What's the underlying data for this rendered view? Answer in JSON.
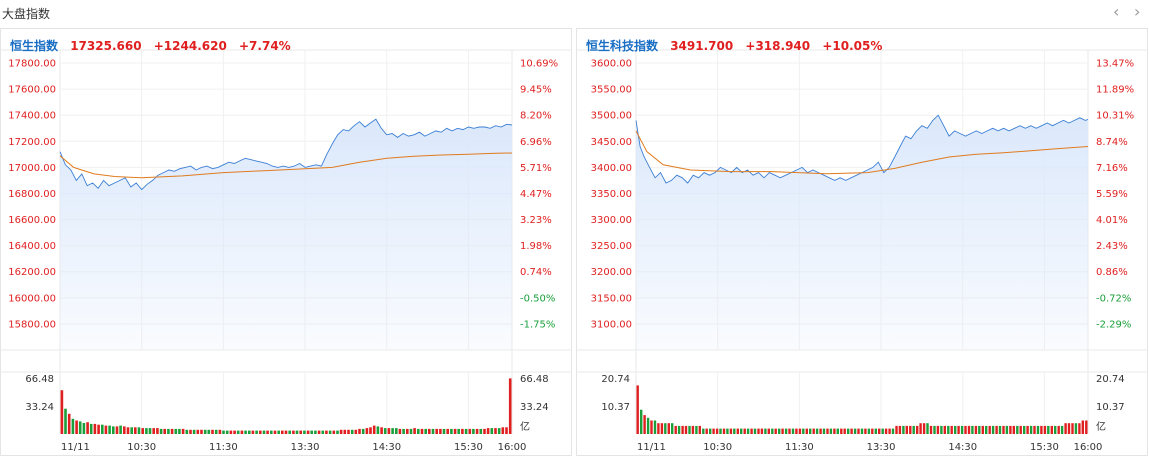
{
  "page": {
    "title": "大盘指数",
    "prev_icon": "chevron-left-icon",
    "next_icon": "chevron-right-icon"
  },
  "colors": {
    "price_line": "#3b7fd4",
    "area_fill": "#dbe8fb",
    "avg_line": "#e07b1e",
    "up": "#e02020",
    "down": "#1a9f3a",
    "name": "#1a6fc4"
  },
  "chart_data": [
    {
      "type": "line",
      "name": "恒生指数",
      "last": "17325.660",
      "change": "+1244.620",
      "change_pct": "+7.74%",
      "ylim": [
        15600,
        17900
      ],
      "y_ticks": [
        "17800.00",
        "17600.00",
        "17400.00",
        "17200.00",
        "17000.00",
        "16800.00",
        "16600.00",
        "16400.00",
        "16200.00",
        "16000.00",
        "15800.00"
      ],
      "pct_ticks": [
        "10.69%",
        "9.45%",
        "8.20%",
        "6.96%",
        "5.71%",
        "4.47%",
        "3.23%",
        "1.98%",
        "0.74%",
        "-0.50%",
        "-1.75%"
      ],
      "x_ticks": [
        "11/11",
        "10:30",
        "11:30",
        "13:30",
        "14:30",
        "15:30",
        "16:00"
      ],
      "price": [
        [
          0,
          17120
        ],
        [
          4,
          17020
        ],
        [
          8,
          16980
        ],
        [
          12,
          16900
        ],
        [
          16,
          16950
        ],
        [
          20,
          16860
        ],
        [
          24,
          16880
        ],
        [
          28,
          16840
        ],
        [
          32,
          16900
        ],
        [
          36,
          16860
        ],
        [
          40,
          16880
        ],
        [
          44,
          16900
        ],
        [
          48,
          16920
        ],
        [
          52,
          16850
        ],
        [
          56,
          16880
        ],
        [
          60,
          16830
        ],
        [
          64,
          16870
        ],
        [
          68,
          16900
        ],
        [
          72,
          16940
        ],
        [
          76,
          16960
        ],
        [
          80,
          16980
        ],
        [
          84,
          16970
        ],
        [
          88,
          16990
        ],
        [
          92,
          17000
        ],
        [
          96,
          17010
        ],
        [
          100,
          16980
        ],
        [
          104,
          17000
        ],
        [
          108,
          17010
        ],
        [
          112,
          16990
        ],
        [
          116,
          17000
        ],
        [
          120,
          17020
        ],
        [
          124,
          17040
        ],
        [
          128,
          17030
        ],
        [
          132,
          17050
        ],
        [
          136,
          17070
        ],
        [
          140,
          17060
        ],
        [
          144,
          17050
        ],
        [
          148,
          17040
        ],
        [
          152,
          17030
        ],
        [
          156,
          17010
        ],
        [
          160,
          17000
        ],
        [
          164,
          17010
        ],
        [
          168,
          17000
        ],
        [
          172,
          17010
        ],
        [
          176,
          17030
        ],
        [
          180,
          17000
        ],
        [
          184,
          17010
        ],
        [
          188,
          17020
        ],
        [
          192,
          17010
        ],
        [
          196,
          17100
        ],
        [
          200,
          17180
        ],
        [
          204,
          17250
        ],
        [
          208,
          17290
        ],
        [
          212,
          17280
        ],
        [
          216,
          17320
        ],
        [
          220,
          17350
        ],
        [
          224,
          17310
        ],
        [
          228,
          17340
        ],
        [
          232,
          17370
        ],
        [
          236,
          17300
        ],
        [
          240,
          17250
        ],
        [
          244,
          17260
        ],
        [
          248,
          17230
        ],
        [
          252,
          17260
        ],
        [
          256,
          17240
        ],
        [
          260,
          17250
        ],
        [
          264,
          17270
        ],
        [
          268,
          17240
        ],
        [
          272,
          17260
        ],
        [
          276,
          17280
        ],
        [
          280,
          17270
        ],
        [
          284,
          17300
        ],
        [
          288,
          17280
        ],
        [
          292,
          17300
        ],
        [
          296,
          17290
        ],
        [
          300,
          17310
        ],
        [
          304,
          17300
        ],
        [
          308,
          17310
        ],
        [
          312,
          17310
        ],
        [
          316,
          17300
        ],
        [
          320,
          17320
        ],
        [
          324,
          17310
        ],
        [
          328,
          17330
        ],
        [
          332,
          17325
        ]
      ],
      "avg": [
        [
          0,
          17090
        ],
        [
          10,
          17000
        ],
        [
          25,
          16950
        ],
        [
          40,
          16930
        ],
        [
          60,
          16920
        ],
        [
          90,
          16935
        ],
        [
          120,
          16960
        ],
        [
          150,
          16975
        ],
        [
          180,
          16990
        ],
        [
          200,
          17000
        ],
        [
          220,
          17040
        ],
        [
          240,
          17070
        ],
        [
          260,
          17085
        ],
        [
          280,
          17095
        ],
        [
          300,
          17100
        ],
        [
          320,
          17108
        ],
        [
          332,
          17110
        ]
      ],
      "volume_axis": [
        "66.48",
        "33.24",
        "亿"
      ],
      "volume_max": 66.48,
      "volume": [
        52,
        30,
        24,
        18,
        16,
        15,
        13,
        14,
        12,
        12,
        11,
        11,
        10,
        10,
        9,
        9,
        10,
        9,
        8,
        8,
        8,
        8,
        7,
        7,
        7,
        7,
        7,
        6,
        6,
        6,
        6,
        6,
        6,
        6,
        5,
        5,
        5,
        5,
        5,
        5,
        5,
        5,
        5,
        5,
        4,
        4,
        4,
        4,
        4,
        4,
        4,
        4,
        4,
        4,
        4,
        4,
        4,
        4,
        4,
        4,
        4,
        4,
        4,
        4,
        4,
        4,
        4,
        4,
        4,
        4,
        4,
        4,
        4,
        4,
        4,
        4,
        5,
        5,
        5,
        5,
        5,
        6,
        6,
        7,
        8,
        10,
        9,
        8,
        7,
        7,
        7,
        7,
        6,
        6,
        6,
        6,
        7,
        6,
        6,
        6,
        6,
        6,
        6,
        6,
        6,
        6,
        6,
        6,
        6,
        6,
        6,
        6,
        6,
        6,
        6,
        6,
        7,
        7,
        7,
        7,
        8,
        8,
        66
      ],
      "volume_up": [
        1,
        0,
        1,
        0,
        1,
        0,
        0,
        1,
        0,
        1,
        1,
        0,
        1,
        0,
        0,
        1,
        0,
        1,
        1,
        0,
        1,
        0,
        1,
        0,
        0,
        1,
        1,
        0,
        1,
        0,
        1,
        0,
        0,
        1,
        0,
        1,
        0,
        1,
        1,
        0,
        0,
        1,
        0,
        1,
        0,
        0,
        1,
        1,
        0,
        1,
        0,
        0,
        1,
        0,
        1,
        0,
        1,
        0,
        1,
        0,
        1,
        1,
        0,
        1,
        0,
        1,
        0,
        1,
        0,
        0,
        1,
        0,
        1,
        0,
        1,
        0,
        1,
        1,
        1,
        0,
        1,
        1,
        0,
        1,
        1,
        1,
        0,
        1,
        0,
        1,
        0,
        0,
        1,
        0,
        1,
        0,
        1,
        0,
        1,
        0,
        1,
        0,
        1,
        1,
        0,
        1,
        0,
        1,
        0,
        1,
        0,
        1,
        0,
        1,
        0,
        1,
        1,
        0,
        1,
        0,
        1,
        1,
        1
      ]
    },
    {
      "type": "line",
      "name": "恒生科技指数",
      "last": "3491.700",
      "change": "+318.940",
      "change_pct": "+10.05%",
      "ylim": [
        3050,
        3625
      ],
      "y_ticks": [
        "3600.00",
        "3550.00",
        "3500.00",
        "3450.00",
        "3400.00",
        "3350.00",
        "3300.00",
        "3250.00",
        "3200.00",
        "3150.00",
        "3100.00"
      ],
      "pct_ticks": [
        "13.47%",
        "11.89%",
        "10.31%",
        "8.74%",
        "7.16%",
        "5.59%",
        "4.01%",
        "2.43%",
        "0.86%",
        "-0.72%",
        "-2.29%"
      ],
      "x_ticks": [
        "11/11",
        "10:30",
        "11:30",
        "13:30",
        "14:30",
        "15:30",
        "16:00"
      ],
      "price": [
        [
          0,
          3490
        ],
        [
          3,
          3440
        ],
        [
          6,
          3420
        ],
        [
          10,
          3400
        ],
        [
          14,
          3380
        ],
        [
          18,
          3390
        ],
        [
          22,
          3370
        ],
        [
          26,
          3375
        ],
        [
          30,
          3385
        ],
        [
          34,
          3380
        ],
        [
          38,
          3370
        ],
        [
          42,
          3385
        ],
        [
          46,
          3380
        ],
        [
          50,
          3390
        ],
        [
          54,
          3385
        ],
        [
          58,
          3390
        ],
        [
          62,
          3400
        ],
        [
          66,
          3395
        ],
        [
          70,
          3390
        ],
        [
          74,
          3400
        ],
        [
          78,
          3390
        ],
        [
          82,
          3395
        ],
        [
          86,
          3385
        ],
        [
          90,
          3390
        ],
        [
          94,
          3380
        ],
        [
          98,
          3390
        ],
        [
          102,
          3385
        ],
        [
          106,
          3380
        ],
        [
          110,
          3385
        ],
        [
          114,
          3390
        ],
        [
          118,
          3395
        ],
        [
          122,
          3400
        ],
        [
          126,
          3390
        ],
        [
          130,
          3395
        ],
        [
          134,
          3390
        ],
        [
          138,
          3385
        ],
        [
          142,
          3380
        ],
        [
          146,
          3375
        ],
        [
          150,
          3380
        ],
        [
          154,
          3375
        ],
        [
          158,
          3380
        ],
        [
          162,
          3385
        ],
        [
          166,
          3390
        ],
        [
          170,
          3395
        ],
        [
          174,
          3400
        ],
        [
          178,
          3410
        ],
        [
          182,
          3390
        ],
        [
          186,
          3400
        ],
        [
          190,
          3420
        ],
        [
          194,
          3440
        ],
        [
          198,
          3460
        ],
        [
          202,
          3455
        ],
        [
          206,
          3470
        ],
        [
          210,
          3480
        ],
        [
          214,
          3475
        ],
        [
          218,
          3490
        ],
        [
          222,
          3500
        ],
        [
          226,
          3480
        ],
        [
          230,
          3460
        ],
        [
          234,
          3470
        ],
        [
          238,
          3465
        ],
        [
          242,
          3460
        ],
        [
          246,
          3465
        ],
        [
          250,
          3470
        ],
        [
          254,
          3465
        ],
        [
          258,
          3470
        ],
        [
          262,
          3475
        ],
        [
          266,
          3470
        ],
        [
          270,
          3475
        ],
        [
          274,
          3470
        ],
        [
          278,
          3475
        ],
        [
          282,
          3480
        ],
        [
          286,
          3475
        ],
        [
          290,
          3480
        ],
        [
          294,
          3475
        ],
        [
          298,
          3480
        ],
        [
          302,
          3485
        ],
        [
          306,
          3480
        ],
        [
          310,
          3485
        ],
        [
          314,
          3490
        ],
        [
          318,
          3485
        ],
        [
          322,
          3490
        ],
        [
          326,
          3495
        ],
        [
          330,
          3490
        ],
        [
          332,
          3492
        ]
      ],
      "avg": [
        [
          0,
          3470
        ],
        [
          8,
          3430
        ],
        [
          20,
          3405
        ],
        [
          40,
          3395
        ],
        [
          70,
          3392
        ],
        [
          100,
          3392
        ],
        [
          140,
          3388
        ],
        [
          170,
          3390
        ],
        [
          190,
          3398
        ],
        [
          210,
          3410
        ],
        [
          230,
          3420
        ],
        [
          250,
          3425
        ],
        [
          270,
          3428
        ],
        [
          290,
          3432
        ],
        [
          310,
          3436
        ],
        [
          332,
          3440
        ]
      ],
      "volume_axis": [
        "20.74",
        "10.37",
        "亿"
      ],
      "volume_max": 20.74,
      "volume": [
        18,
        9,
        7,
        6,
        5,
        5,
        4,
        4,
        4,
        4,
        4,
        3,
        3,
        3,
        3,
        3,
        3,
        3,
        3,
        2,
        2,
        2,
        2,
        2,
        2,
        2,
        2,
        2,
        2,
        2,
        2,
        2,
        2,
        2,
        2,
        2,
        2,
        2,
        2,
        2,
        2,
        2,
        2,
        2,
        2,
        2,
        2,
        2,
        2,
        2,
        2,
        2,
        2,
        2,
        2,
        2,
        2,
        2,
        2,
        2,
        2,
        2,
        2,
        2,
        2,
        2,
        2,
        2,
        2,
        2,
        2,
        2,
        2,
        2,
        2,
        3,
        3,
        3,
        3,
        3,
        3,
        3,
        4,
        4,
        4,
        3,
        3,
        3,
        3,
        3,
        3,
        3,
        3,
        3,
        3,
        3,
        3,
        3,
        3,
        3,
        3,
        3,
        3,
        3,
        3,
        3,
        3,
        3,
        3,
        3,
        3,
        3,
        3,
        3,
        3,
        3,
        3,
        3,
        3,
        3,
        3,
        3,
        3,
        3,
        4,
        4,
        4,
        4,
        4,
        5,
        5
      ],
      "volume_up": [
        1,
        0,
        1,
        0,
        1,
        0,
        1,
        1,
        0,
        1,
        0,
        1,
        0,
        1,
        1,
        0,
        1,
        0,
        1,
        0,
        1,
        0,
        1,
        1,
        0,
        1,
        0,
        1,
        0,
        1,
        0,
        1,
        0,
        1,
        0,
        1,
        1,
        0,
        1,
        0,
        1,
        0,
        1,
        0,
        1,
        0,
        1,
        1,
        0,
        1,
        0,
        1,
        0,
        1,
        0,
        1,
        0,
        1,
        0,
        1,
        1,
        0,
        1,
        0,
        1,
        0,
        1,
        0,
        1,
        0,
        1,
        0,
        1,
        1,
        0,
        1,
        1,
        0,
        1,
        1,
        0,
        1,
        1,
        1,
        0,
        1,
        0,
        1,
        0,
        1,
        0,
        1,
        0,
        1,
        0,
        1,
        1,
        0,
        1,
        0,
        1,
        0,
        1,
        0,
        1,
        0,
        1,
        0,
        1,
        1,
        0,
        1,
        0,
        1,
        0,
        1,
        0,
        1,
        1,
        0,
        1,
        0,
        1,
        0,
        1,
        1,
        1,
        0,
        1,
        1,
        1
      ]
    }
  ]
}
